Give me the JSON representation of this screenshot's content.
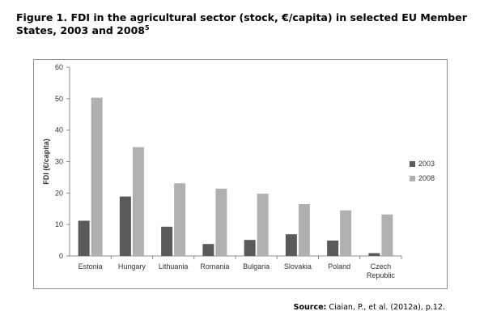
{
  "figure": {
    "title": "Figure 1. FDI in the agricultural sector (stock, €/capita) in selected EU Member States, 2003 and 2008",
    "footnote": "5",
    "source_label": "Source:",
    "source_text": "Ciaian, P., et al. (2012a), p.12."
  },
  "colors": {
    "series_2003": "#5a5a5a",
    "series_2008": "#b0b0b0",
    "axis": "#8c8c8c"
  },
  "chart_data": {
    "type": "bar",
    "categories": [
      "Estonia",
      "Hungary",
      "Lithuania",
      "Romania",
      "Bulgaria",
      "Slovakia",
      "Poland",
      "Czech Republic"
    ],
    "category_lines": [
      [
        "Estonia"
      ],
      [
        "Hungary"
      ],
      [
        "Lithuania"
      ],
      [
        "Romania"
      ],
      [
        "Bulgaria"
      ],
      [
        "Slovakia"
      ],
      [
        "Poland"
      ],
      [
        "Czech",
        "Republic"
      ]
    ],
    "series": [
      {
        "name": "2003",
        "values": [
          11.2,
          18.9,
          9.3,
          3.8,
          5.1,
          6.9,
          4.9,
          0.9
        ]
      },
      {
        "name": "2008",
        "values": [
          50.3,
          34.6,
          23.1,
          21.4,
          19.8,
          16.5,
          14.5,
          13.2
        ]
      }
    ],
    "ylabel": "FDI (€/capita)",
    "xlabel": "",
    "ylim": [
      0,
      60
    ],
    "yticks": [
      0,
      10,
      20,
      30,
      40,
      50,
      60
    ],
    "legend": "right",
    "grid": false
  }
}
